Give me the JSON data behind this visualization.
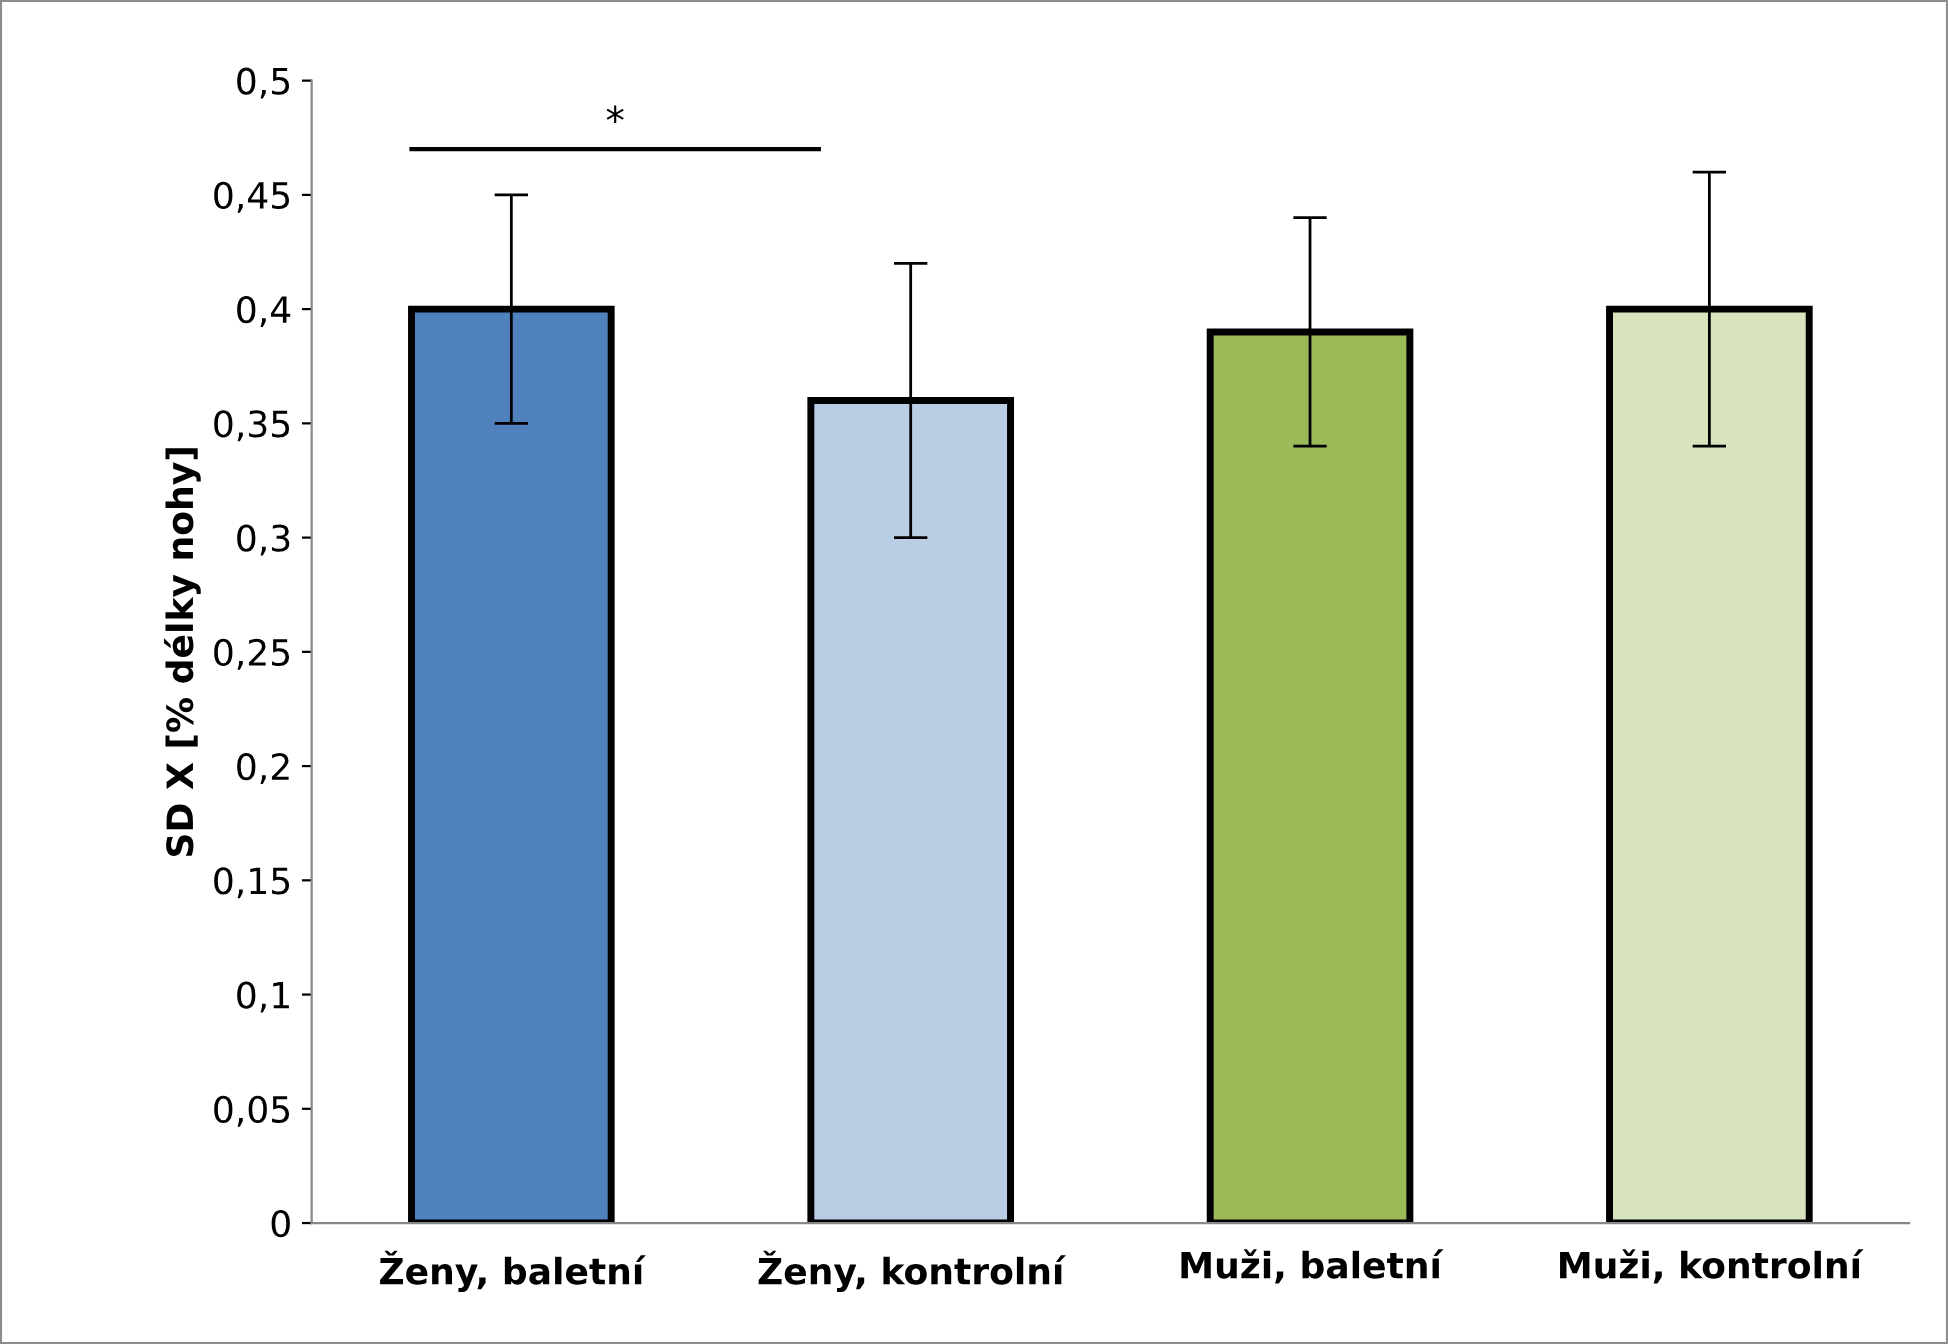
{
  "chart_data": {
    "type": "bar",
    "ylabel": "SD X [% délky nohy]",
    "categories": [
      "Ženy, baletní",
      "Ženy, kontrolní",
      "Muži, baletní",
      "Muži, kontrolní"
    ],
    "values": [
      0.4,
      0.36,
      0.39,
      0.4
    ],
    "colors": [
      "#4f81bd",
      "#b9cde5",
      "#9bbb59",
      "#d7e4bd"
    ],
    "errors": [
      0.05,
      0.06,
      0.05,
      0.06
    ],
    "ylim": [
      0,
      0.5
    ],
    "yticks": [
      0,
      {
        "value": 0.05,
        "label": "0,05"
      },
      {
        "value": 0.1,
        "label": "0,1"
      },
      {
        "value": 0.15,
        "label": "0,15"
      },
      {
        "value": 0.2,
        "label": "0,2"
      },
      {
        "value": 0.25,
        "label": "0,25"
      },
      {
        "value": 0.3,
        "label": "0,3"
      },
      {
        "value": 0.35,
        "label": "0,35"
      },
      {
        "value": 0.4,
        "label": "0,4"
      },
      {
        "value": 0.45,
        "label": "0,45"
      },
      {
        "value": 0.5,
        "label": "0,5"
      }
    ],
    "annotations": [
      "*"
    ],
    "grid": false,
    "legend": false
  }
}
